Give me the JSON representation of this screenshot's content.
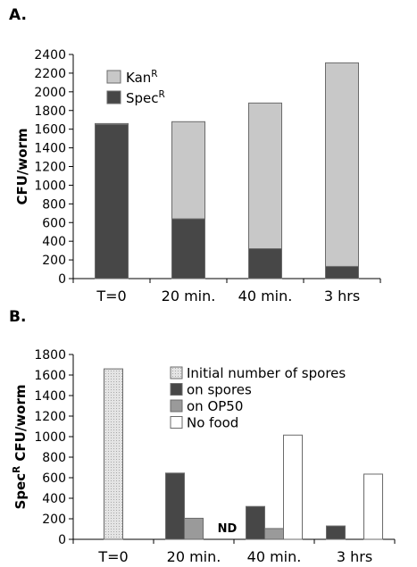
{
  "chart_data": [
    {
      "panel": "A.",
      "type": "bar",
      "stacked": true,
      "ylabel": "CFU/worm",
      "ylim": [
        0,
        2400
      ],
      "ytick_step": 200,
      "categories": [
        "T=0",
        "20 min.",
        "40 min.",
        "3 hrs"
      ],
      "series": [
        {
          "name": "Spec",
          "name_sup": "R",
          "color": "#474747",
          "values": [
            1650,
            640,
            320,
            130
          ]
        },
        {
          "name": "Kan",
          "name_sup": "R",
          "color": "#c8c8c8",
          "values": [
            10,
            1040,
            1560,
            2180
          ]
        }
      ],
      "legend": "top-left"
    },
    {
      "panel": "B.",
      "type": "bar",
      "stacked": false,
      "ylabel": "Spec",
      "ylabel_sup": "R",
      "ylabel_rest": " CFU/worm",
      "ylim": [
        0,
        1800
      ],
      "ytick_step": 200,
      "categories": [
        "T=0",
        "20 min.",
        "40 min.",
        "3 hrs"
      ],
      "series": [
        {
          "name": "Initial number of spores",
          "color": "#dedede",
          "pattern": "dots",
          "values": [
            1660,
            null,
            null,
            null
          ]
        },
        {
          "name": "on spores",
          "color": "#474747",
          "values": [
            null,
            645,
            320,
            130
          ]
        },
        {
          "name": "on OP50",
          "color": "#9a9a9a",
          "values": [
            null,
            205,
            105,
            null
          ]
        },
        {
          "name": "No food",
          "color": "#ffffff",
          "values": [
            null,
            null,
            1015,
            635
          ]
        }
      ],
      "annotations": [
        {
          "text": "ND",
          "category": "20 min."
        }
      ],
      "legend": "top-right"
    }
  ]
}
